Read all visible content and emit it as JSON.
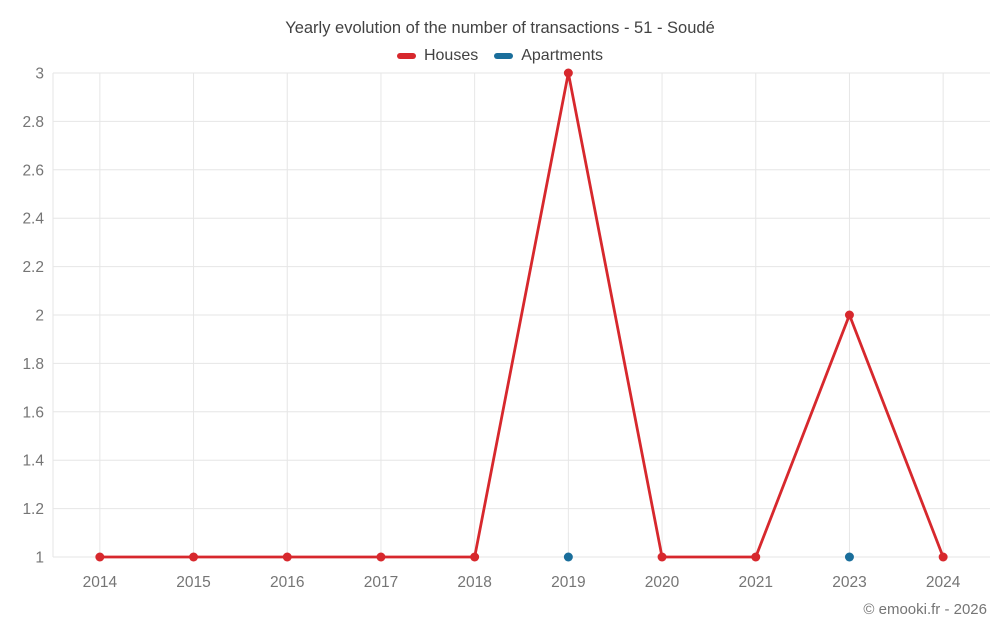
{
  "page": {
    "title": "Yearly evolution of the number of transactions - 51 - Soudé",
    "footer": "© emooki.fr - 2026"
  },
  "legend": {
    "items": [
      {
        "label": "Houses",
        "color": "#d7282d"
      },
      {
        "label": "Apartments",
        "color": "#1a6e9b"
      }
    ]
  },
  "chart_data": {
    "type": "line",
    "title": "Yearly evolution of the number of transactions - 51 - Soudé",
    "categories": [
      "2014",
      "2015",
      "2016",
      "2017",
      "2018",
      "2019",
      "2020",
      "2021",
      "2023",
      "2024"
    ],
    "series": [
      {
        "name": "Houses",
        "color": "#d7282d",
        "values": [
          1,
          1,
          1,
          1,
          1,
          3,
          1,
          1,
          2,
          1
        ]
      },
      {
        "name": "Apartments",
        "color": "#1a6e9b",
        "values": [
          null,
          null,
          null,
          null,
          null,
          1,
          null,
          null,
          1,
          null
        ]
      }
    ],
    "xlabel": "",
    "ylabel": "",
    "ylim": [
      1,
      3
    ],
    "yticks": [
      3,
      2.8,
      2.6,
      2.4,
      2.2,
      2,
      1.8,
      1.6,
      1.4,
      1.2,
      1
    ],
    "grid": true,
    "legend_position": "top",
    "colors": {
      "grid_line": "#e6e6e6",
      "axis_label": "#757575",
      "title_text": "#424242"
    }
  }
}
